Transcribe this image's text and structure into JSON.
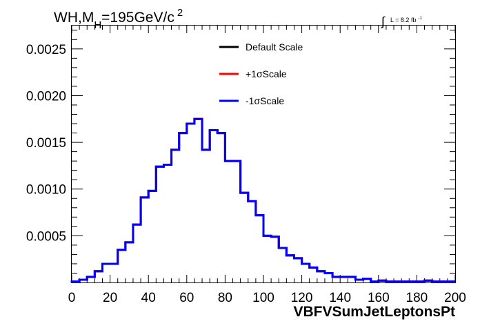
{
  "chart_data": {
    "type": "line",
    "title": {
      "main": "WH,M",
      "sub": "H",
      "rest": "=195GeV/c",
      "sup": "2"
    },
    "lumi": {
      "text": "L = 8.2 fb",
      "sup": "-1"
    },
    "xlabel": "VBFVSumJetLeptonsPt",
    "ylabel": "",
    "xlim": [
      0,
      200
    ],
    "ylim": [
      0,
      0.00275
    ],
    "xticks": [
      "0",
      "20",
      "40",
      "60",
      "80",
      "100",
      "120",
      "140",
      "160",
      "180",
      "200"
    ],
    "yticks": [
      "0.0005",
      "0.0010",
      "0.0015",
      "0.0020",
      "0.0025"
    ],
    "ytick_values": [
      0.0005,
      0.001,
      0.0015,
      0.002,
      0.0025
    ],
    "legend_position": "top-center",
    "bin_edges": [
      0,
      4,
      8,
      12,
      16,
      20,
      24,
      28,
      32,
      36,
      40,
      44,
      48,
      52,
      56,
      60,
      64,
      68,
      72,
      76,
      80,
      84,
      88,
      92,
      96,
      100,
      104,
      108,
      112,
      116,
      120,
      124,
      128,
      132,
      136,
      140,
      144,
      148,
      152,
      156,
      160,
      164,
      168,
      172,
      176,
      180,
      184,
      188,
      192,
      196,
      200
    ],
    "series": [
      {
        "name": "Default Scale",
        "color": "#000000",
        "values": [
          1e-05,
          3e-05,
          6e-05,
          0.00012,
          0.0002,
          0.0002,
          0.00035,
          0.00043,
          0.00062,
          0.00091,
          0.00098,
          0.00124,
          0.00126,
          0.00142,
          0.0016,
          0.0017,
          0.00175,
          0.00142,
          0.00163,
          0.0016,
          0.0013,
          0.0013,
          0.00096,
          0.00087,
          0.00072,
          0.0005,
          0.00049,
          0.00037,
          0.00029,
          0.00026,
          0.0002,
          0.00016,
          0.00012,
          0.0001,
          6e-05,
          6e-05,
          6e-05,
          3e-05,
          4e-05,
          1e-05,
          2e-05,
          1e-05,
          1e-05,
          1e-05,
          1e-05,
          1e-05,
          2e-05,
          1e-05,
          1e-05,
          1e-05
        ]
      },
      {
        "name": "+1σScale",
        "color": "#ff0000",
        "values": [
          1e-05,
          3e-05,
          6e-05,
          0.00012,
          0.0002,
          0.0002,
          0.00035,
          0.00043,
          0.00062,
          0.00091,
          0.00098,
          0.00124,
          0.00126,
          0.00142,
          0.0016,
          0.0017,
          0.00175,
          0.00142,
          0.00163,
          0.0016,
          0.0013,
          0.0013,
          0.00096,
          0.00087,
          0.00072,
          0.0005,
          0.00049,
          0.00037,
          0.00029,
          0.00026,
          0.0002,
          0.00016,
          0.00012,
          0.0001,
          6e-05,
          6e-05,
          6e-05,
          3e-05,
          4e-05,
          1e-05,
          2e-05,
          1e-05,
          1e-05,
          1e-05,
          1e-05,
          1e-05,
          2e-05,
          1e-05,
          1e-05,
          1e-05
        ]
      },
      {
        "name": "-1σScale",
        "color": "#0000ff",
        "values": [
          1e-05,
          3e-05,
          6e-05,
          0.00012,
          0.0002,
          0.0002,
          0.00035,
          0.00043,
          0.00062,
          0.00091,
          0.00098,
          0.00124,
          0.00126,
          0.00142,
          0.0016,
          0.0017,
          0.00175,
          0.00142,
          0.00163,
          0.0016,
          0.0013,
          0.0013,
          0.00096,
          0.00087,
          0.00072,
          0.0005,
          0.00049,
          0.00037,
          0.00029,
          0.00026,
          0.0002,
          0.00016,
          0.00012,
          0.0001,
          6e-05,
          6e-05,
          6e-05,
          3e-05,
          4e-05,
          1e-05,
          2e-05,
          1e-05,
          1e-05,
          1e-05,
          1e-05,
          1e-05,
          2e-05,
          1e-05,
          1e-05,
          1e-05
        ]
      }
    ]
  }
}
